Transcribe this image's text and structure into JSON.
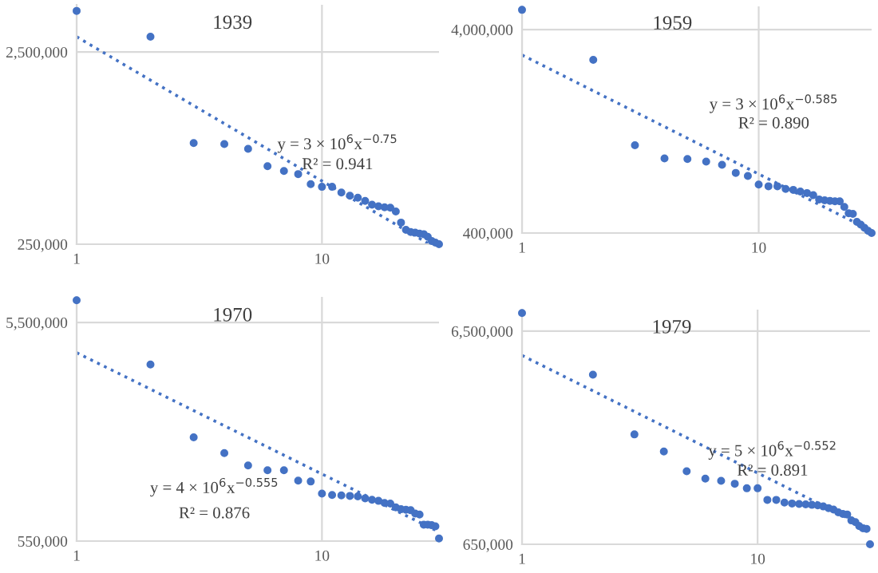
{
  "chart_data": [
    {
      "type": "scatter",
      "title": "1939",
      "log": "xy",
      "grid": true,
      "marker": "circle",
      "xlim": [
        1,
        30
      ],
      "xticks": [
        1,
        10
      ],
      "ylim": [
        250000,
        4400000
      ],
      "yticks": [
        {
          "value": 250000,
          "label": "250,000"
        },
        {
          "value": 2500000,
          "label": "2,500,000"
        }
      ],
      "x": [
        1,
        2,
        3,
        4,
        5,
        6,
        7,
        8,
        9,
        10,
        11,
        12,
        13,
        14,
        15,
        16,
        17,
        18,
        19,
        20,
        21,
        22,
        23,
        24,
        25,
        26,
        27,
        28,
        29,
        30
      ],
      "series": [
        {
          "color": "#4472c4",
          "values": [
            4090000,
            3000000,
            840000,
            830000,
            783000,
            636000,
            601000,
            579000,
            513000,
            497000,
            497000,
            464000,
            447000,
            436000,
            420000,
            401000,
            394000,
            389000,
            387000,
            370000,
            324000,
            297000,
            289000,
            287000,
            284000,
            282000,
            273000,
            260000,
            255000,
            250000
          ]
        },
        {
          "type": "line",
          "color": "#4472c4",
          "line_style": "dotted",
          "marker": "none",
          "x": [
            1,
            27
          ],
          "values": [
            3000000,
            253000
          ]
        }
      ],
      "annotations": [
        "y = 3 × 10$^{6}$x$^{−0.75}$",
        "R² = 0.941"
      ]
    },
    {
      "type": "scatter",
      "title": "1959",
      "log": "xy",
      "grid": true,
      "marker": "circle",
      "xlim": [
        1,
        30
      ],
      "xticks": [
        1,
        10
      ],
      "ylim": [
        400000,
        5200000
      ],
      "yticks": [
        {
          "value": 400000,
          "label": "400,000"
        },
        {
          "value": 4000000,
          "label": "4,000,000"
        }
      ],
      "x": [
        1,
        2,
        3,
        4,
        5,
        6,
        7,
        8,
        9,
        10,
        11,
        12,
        13,
        14,
        15,
        16,
        17,
        18,
        19,
        20,
        21,
        22,
        23,
        24,
        25,
        26,
        27,
        28,
        29,
        30
      ],
      "series": [
        {
          "color": "#4472c4",
          "values": [
            5000000,
            2840000,
            1080000,
            930000,
            925000,
            897000,
            866000,
            790000,
            763000,
            692000,
            679000,
            679000,
            659000,
            652000,
            640000,
            629000,
            614000,
            585000,
            579000,
            576000,
            573000,
            573000,
            538000,
            500000,
            497000,
            454000,
            440000,
            424000,
            410000,
            400000
          ]
        },
        {
          "type": "line",
          "color": "#4472c4",
          "line_style": "dotted",
          "marker": "none",
          "x": [
            1,
            30
          ],
          "values": [
            3000000,
            410000
          ]
        }
      ],
      "annotations": [
        "y = 3 × 10$^{6}$x$^{−0.585}$",
        "R² = 0.890"
      ]
    },
    {
      "type": "scatter",
      "title": "1970",
      "log": "xy",
      "grid": true,
      "marker": "circle",
      "xlim": [
        1,
        30
      ],
      "xticks": [
        1,
        10
      ],
      "ylim": [
        550000,
        7200000
      ],
      "yticks": [
        {
          "value": 550000,
          "label": "550,000"
        },
        {
          "value": 5500000,
          "label": "5,500,000"
        }
      ],
      "x": [
        1,
        2,
        3,
        4,
        5,
        6,
        7,
        8,
        9,
        10,
        11,
        12,
        13,
        14,
        15,
        16,
        17,
        18,
        19,
        20,
        21,
        22,
        23,
        24,
        25,
        26,
        27,
        28,
        29,
        30
      ],
      "series": [
        {
          "color": "#4472c4",
          "values": [
            6950000,
            3530000,
            1640000,
            1390000,
            1220000,
            1160000,
            1160000,
            1040000,
            1030000,
            907000,
            894000,
            890000,
            885000,
            880000,
            863000,
            850000,
            840000,
            821000,
            817000,
            785000,
            769000,
            765000,
            761000,
            735000,
            727000,
            654000,
            654000,
            650000,
            643000,
            565000
          ]
        },
        {
          "type": "line",
          "color": "#4472c4",
          "line_style": "dotted",
          "marker": "none",
          "x": [
            1,
            30
          ],
          "values": [
            4000000,
            606000
          ]
        }
      ],
      "annotations": [
        "y = 4 × 10$^{6}$x$^{−0.555}$",
        "R² = 0.876"
      ]
    },
    {
      "type": "scatter",
      "title": "1979",
      "log": "xy",
      "grid": true,
      "marker": "circle",
      "xlim": [
        1,
        30
      ],
      "xticks": [
        1,
        10
      ],
      "ylim": [
        650000,
        8200000
      ],
      "yticks": [
        {
          "value": 650000,
          "label": "650,000"
        },
        {
          "value": 6500000,
          "label": "6,500,000"
        }
      ],
      "x": [
        1,
        2,
        3,
        4,
        5,
        6,
        7,
        8,
        9,
        10,
        11,
        12,
        13,
        14,
        15,
        16,
        17,
        18,
        19,
        20,
        21,
        22,
        23,
        24,
        25,
        26,
        27,
        28,
        29,
        30
      ],
      "series": [
        {
          "color": "#4472c4",
          "values": [
            7910000,
            4060000,
            2130000,
            1770000,
            1430000,
            1320000,
            1290000,
            1250000,
            1190000,
            1190000,
            1050000,
            1050000,
            1020000,
            1010000,
            1005000,
            1000000,
            995000,
            990000,
            978000,
            961000,
            946000,
            918000,
            902000,
            897000,
            841000,
            826000,
            791000,
            773000,
            768000,
            650000
          ]
        },
        {
          "type": "line",
          "color": "#4472c4",
          "line_style": "dotted",
          "marker": "none",
          "x": [
            1,
            30
          ],
          "values": [
            5000000,
            766000
          ]
        }
      ],
      "annotations": [
        "y = 5 × 10$^{6}$x$^{−0.552}$",
        "R² = 0.891"
      ]
    }
  ]
}
